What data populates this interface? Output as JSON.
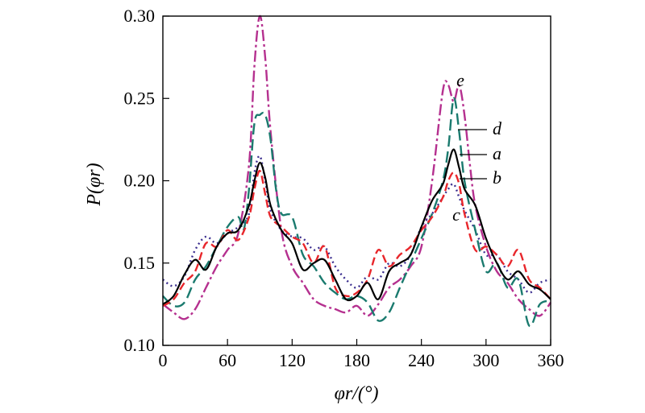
{
  "chart_data": {
    "type": "line",
    "xlabel": "φr/(°)",
    "ylabel": "P(φr)",
    "xlim": [
      0,
      360
    ],
    "ylim": [
      0.1,
      0.3
    ],
    "xticks": [
      0,
      60,
      120,
      180,
      240,
      300,
      360
    ],
    "yticks": [
      0.1,
      0.15,
      0.2,
      0.25,
      0.3
    ],
    "xtick_labels": [
      "0",
      "60",
      "120",
      "180",
      "240",
      "300",
      "360"
    ],
    "ytick_labels": [
      "0.10",
      "0.15",
      "0.20",
      "0.25",
      "0.30"
    ],
    "series": [
      {
        "name": "a",
        "color": "#000000",
        "dash": "solid",
        "x": [
          0,
          10,
          20,
          30,
          40,
          50,
          60,
          70,
          80,
          85,
          90,
          95,
          100,
          110,
          120,
          130,
          140,
          150,
          160,
          170,
          180,
          190,
          200,
          210,
          220,
          230,
          240,
          250,
          260,
          265,
          270,
          275,
          280,
          290,
          300,
          310,
          320,
          330,
          340,
          350,
          360
        ],
        "y": [
          0.125,
          0.13,
          0.143,
          0.152,
          0.146,
          0.16,
          0.168,
          0.17,
          0.185,
          0.2,
          0.211,
          0.202,
          0.185,
          0.17,
          0.162,
          0.146,
          0.15,
          0.152,
          0.14,
          0.128,
          0.13,
          0.138,
          0.128,
          0.145,
          0.15,
          0.155,
          0.172,
          0.188,
          0.198,
          0.21,
          0.219,
          0.208,
          0.195,
          0.185,
          0.165,
          0.15,
          0.14,
          0.145,
          0.137,
          0.134,
          0.128
        ]
      },
      {
        "name": "b",
        "color": "#e8262b",
        "dash": "10 5",
        "x": [
          0,
          10,
          20,
          30,
          40,
          50,
          60,
          70,
          80,
          85,
          90,
          95,
          100,
          110,
          120,
          130,
          140,
          150,
          160,
          170,
          180,
          190,
          200,
          210,
          220,
          230,
          240,
          250,
          260,
          265,
          270,
          275,
          280,
          290,
          300,
          310,
          320,
          330,
          340,
          350,
          360
        ],
        "y": [
          0.124,
          0.128,
          0.138,
          0.145,
          0.162,
          0.16,
          0.17,
          0.164,
          0.178,
          0.195,
          0.206,
          0.192,
          0.178,
          0.172,
          0.166,
          0.162,
          0.15,
          0.16,
          0.135,
          0.13,
          0.132,
          0.14,
          0.158,
          0.148,
          0.155,
          0.16,
          0.17,
          0.178,
          0.19,
          0.2,
          0.205,
          0.198,
          0.18,
          0.158,
          0.16,
          0.155,
          0.148,
          0.158,
          0.14,
          0.135,
          0.128
        ]
      },
      {
        "name": "c",
        "color": "#3b2e8f",
        "dash": "2 4",
        "x": [
          0,
          10,
          20,
          30,
          40,
          50,
          60,
          70,
          80,
          85,
          90,
          95,
          100,
          110,
          120,
          130,
          140,
          150,
          160,
          170,
          180,
          190,
          200,
          210,
          220,
          230,
          240,
          250,
          260,
          265,
          270,
          275,
          280,
          290,
          300,
          310,
          320,
          330,
          340,
          350,
          360
        ],
        "y": [
          0.14,
          0.136,
          0.142,
          0.158,
          0.166,
          0.162,
          0.168,
          0.172,
          0.18,
          0.205,
          0.215,
          0.2,
          0.182,
          0.17,
          0.166,
          0.165,
          0.158,
          0.16,
          0.148,
          0.14,
          0.135,
          0.142,
          0.14,
          0.15,
          0.148,
          0.155,
          0.172,
          0.18,
          0.19,
          0.195,
          0.198,
          0.19,
          0.182,
          0.17,
          0.155,
          0.155,
          0.145,
          0.14,
          0.132,
          0.138,
          0.14
        ]
      },
      {
        "name": "d",
        "color": "#1a7a6e",
        "dash": "14 6",
        "x": [
          0,
          10,
          20,
          30,
          40,
          50,
          60,
          70,
          75,
          80,
          85,
          90,
          95,
          100,
          105,
          110,
          120,
          130,
          140,
          150,
          160,
          170,
          180,
          190,
          200,
          210,
          220,
          230,
          240,
          250,
          260,
          265,
          270,
          275,
          280,
          290,
          300,
          310,
          320,
          330,
          340,
          350,
          360
        ],
        "y": [
          0.13,
          0.124,
          0.126,
          0.14,
          0.148,
          0.16,
          0.172,
          0.178,
          0.17,
          0.195,
          0.235,
          0.24,
          0.24,
          0.225,
          0.195,
          0.18,
          0.178,
          0.155,
          0.148,
          0.138,
          0.132,
          0.128,
          0.13,
          0.126,
          0.115,
          0.12,
          0.135,
          0.15,
          0.165,
          0.18,
          0.2,
          0.22,
          0.25,
          0.23,
          0.2,
          0.17,
          0.145,
          0.15,
          0.135,
          0.14,
          0.112,
          0.125,
          0.127
        ]
      },
      {
        "name": "e",
        "color": "#b5308f",
        "dash": "14 4 3 4",
        "x": [
          0,
          10,
          20,
          30,
          40,
          50,
          60,
          70,
          80,
          85,
          90,
          95,
          100,
          110,
          120,
          130,
          140,
          150,
          160,
          170,
          180,
          190,
          200,
          210,
          220,
          230,
          240,
          250,
          260,
          265,
          270,
          275,
          280,
          285,
          290,
          300,
          310,
          320,
          330,
          340,
          350,
          360
        ],
        "y": [
          0.125,
          0.12,
          0.116,
          0.122,
          0.135,
          0.148,
          0.158,
          0.168,
          0.21,
          0.27,
          0.3,
          0.275,
          0.23,
          0.17,
          0.148,
          0.138,
          0.128,
          0.124,
          0.122,
          0.12,
          0.124,
          0.118,
          0.125,
          0.135,
          0.14,
          0.148,
          0.16,
          0.2,
          0.255,
          0.258,
          0.248,
          0.258,
          0.24,
          0.21,
          0.185,
          0.16,
          0.145,
          0.138,
          0.128,
          0.122,
          0.118,
          0.126
        ]
      }
    ]
  }
}
